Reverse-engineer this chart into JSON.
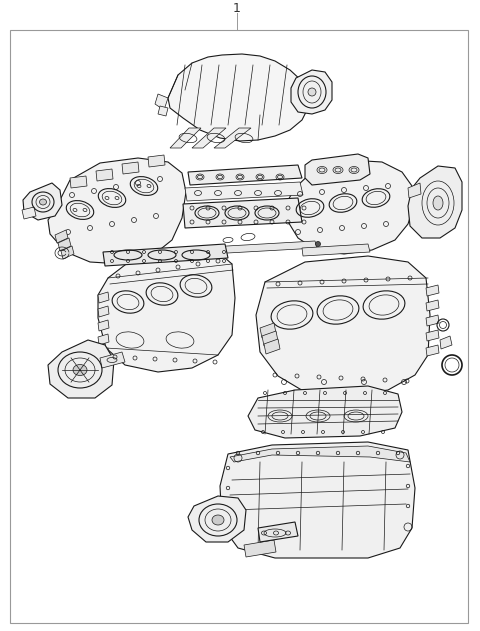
{
  "title": "1",
  "bg_color": "#ffffff",
  "border_color": "#aaaaaa",
  "line_color": "#1a1a1a",
  "fig_width": 4.8,
  "fig_height": 6.31,
  "dpi": 100,
  "lw_thin": 0.5,
  "lw_med": 0.8,
  "lw_thick": 1.2,
  "fc_part": "#f8f8f8",
  "fc_gasket": "#f0f0f0",
  "fc_white": "#ffffff"
}
